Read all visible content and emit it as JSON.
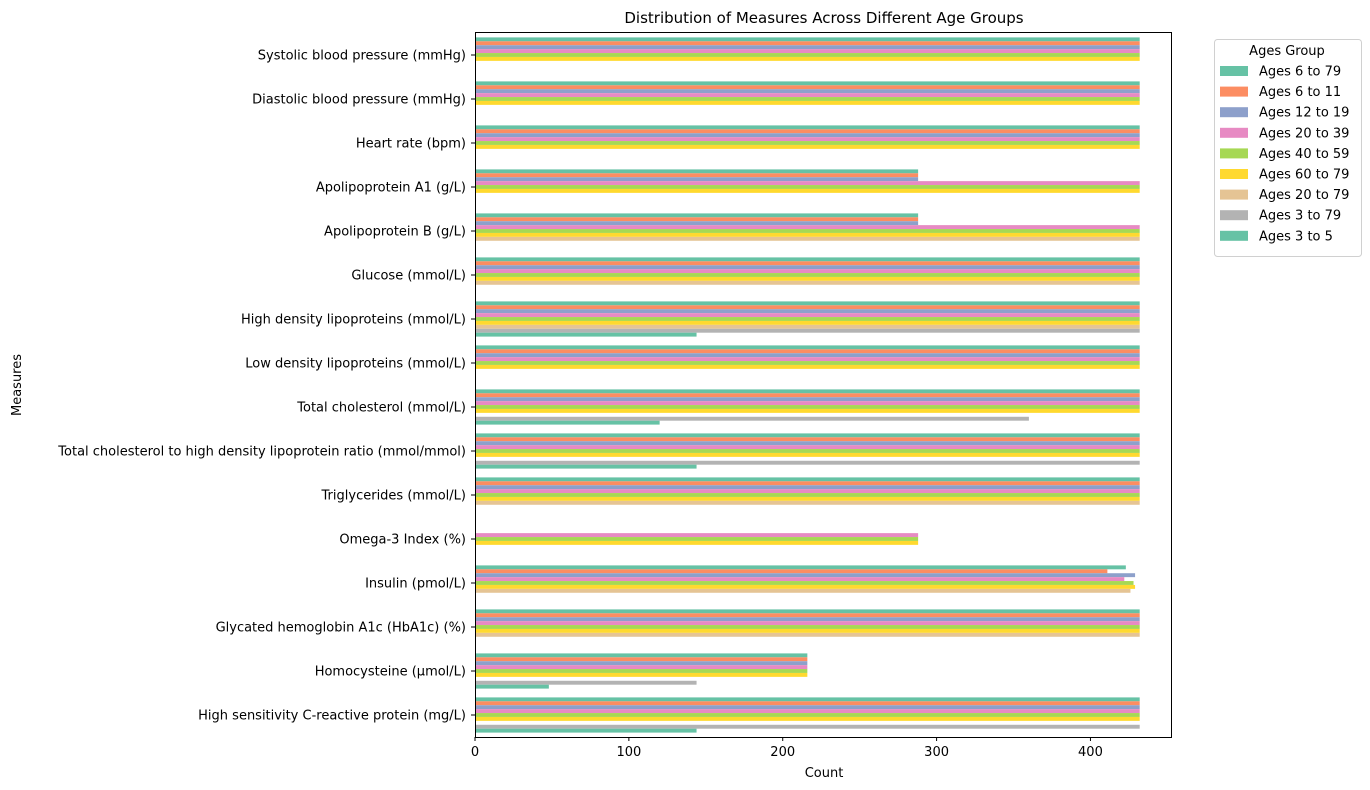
{
  "chart_data": {
    "type": "bar",
    "orientation": "horizontal",
    "title": "Distribution of Measures Across Different Age Groups",
    "xlabel": "Count",
    "ylabel": "Measures",
    "xlim": [
      0,
      453
    ],
    "xticks": [
      0,
      100,
      200,
      300,
      400
    ],
    "grid": false,
    "legend": {
      "title": "Ages Group",
      "placement": "outside upper right",
      "entries": [
        {
          "name": "Ages 6 to 79",
          "color": "#66c2a5"
        },
        {
          "name": "Ages 6 to 11",
          "color": "#fc8d62"
        },
        {
          "name": "Ages 12 to 19",
          "color": "#8da0cb"
        },
        {
          "name": "Ages 20 to 39",
          "color": "#e78ac3"
        },
        {
          "name": "Ages 40 to 59",
          "color": "#a6d854"
        },
        {
          "name": "Ages 60 to 79",
          "color": "#ffd92f"
        },
        {
          "name": "Ages 20 to 79",
          "color": "#e5c494"
        },
        {
          "name": "Ages 3 to 79",
          "color": "#b3b3b3"
        },
        {
          "name": "Ages 3 to 5",
          "color": "#66c2a5"
        }
      ]
    },
    "categories": [
      "Systolic blood pressure (mmHg)",
      "Diastolic blood pressure (mmHg)",
      "Heart rate (bpm)",
      "Apolipoprotein A1 (g/L)",
      "Apolipoprotein B  (g/L)",
      "Glucose (mmol/L)",
      "High density lipoproteins (mmol/L)",
      "Low density lipoproteins (mmol/L)",
      "Total cholesterol (mmol/L)",
      "Total cholesterol to high density lipoprotein ratio (mmol/mmol)",
      "Triglycerides (mmol/L)",
      "Omega-3 Index (%)",
      "Insulin (pmol/L)",
      "Glycated hemoglobin A1c (HbA1c) (%)",
      "Homocysteine  (µmol/L)",
      "High sensitivity C-reactive protein (mg/L)"
    ],
    "series": [
      {
        "name": "Ages 6 to 79",
        "values": [
          432,
          432,
          432,
          288,
          288,
          432,
          432,
          432,
          432,
          432,
          432,
          null,
          423,
          432,
          216,
          432
        ]
      },
      {
        "name": "Ages 6 to 11",
        "values": [
          432,
          432,
          432,
          288,
          288,
          432,
          432,
          432,
          432,
          432,
          432,
          null,
          411,
          432,
          216,
          432
        ]
      },
      {
        "name": "Ages 12 to 19",
        "values": [
          432,
          432,
          432,
          288,
          288,
          432,
          432,
          432,
          432,
          432,
          432,
          null,
          429,
          432,
          216,
          432
        ]
      },
      {
        "name": "Ages 20 to 39",
        "values": [
          432,
          432,
          432,
          432,
          432,
          432,
          432,
          432,
          432,
          432,
          432,
          288,
          422,
          432,
          216,
          432
        ]
      },
      {
        "name": "Ages 40 to 59",
        "values": [
          432,
          432,
          432,
          432,
          432,
          432,
          432,
          432,
          432,
          432,
          432,
          288,
          428,
          432,
          216,
          432
        ]
      },
      {
        "name": "Ages 60 to 79",
        "values": [
          432,
          432,
          432,
          432,
          432,
          432,
          432,
          432,
          432,
          432,
          432,
          288,
          429,
          432,
          216,
          432
        ]
      },
      {
        "name": "Ages 20 to 79",
        "values": [
          null,
          null,
          null,
          null,
          432,
          432,
          432,
          null,
          null,
          null,
          432,
          null,
          426,
          432,
          null,
          null
        ]
      },
      {
        "name": "Ages 3 to 79",
        "values": [
          null,
          null,
          null,
          null,
          null,
          null,
          432,
          null,
          360,
          432,
          null,
          null,
          null,
          null,
          144,
          432
        ]
      },
      {
        "name": "Ages 3 to 5",
        "values": [
          null,
          null,
          null,
          null,
          null,
          null,
          144,
          null,
          120,
          144,
          null,
          null,
          null,
          null,
          48,
          144
        ]
      }
    ]
  }
}
